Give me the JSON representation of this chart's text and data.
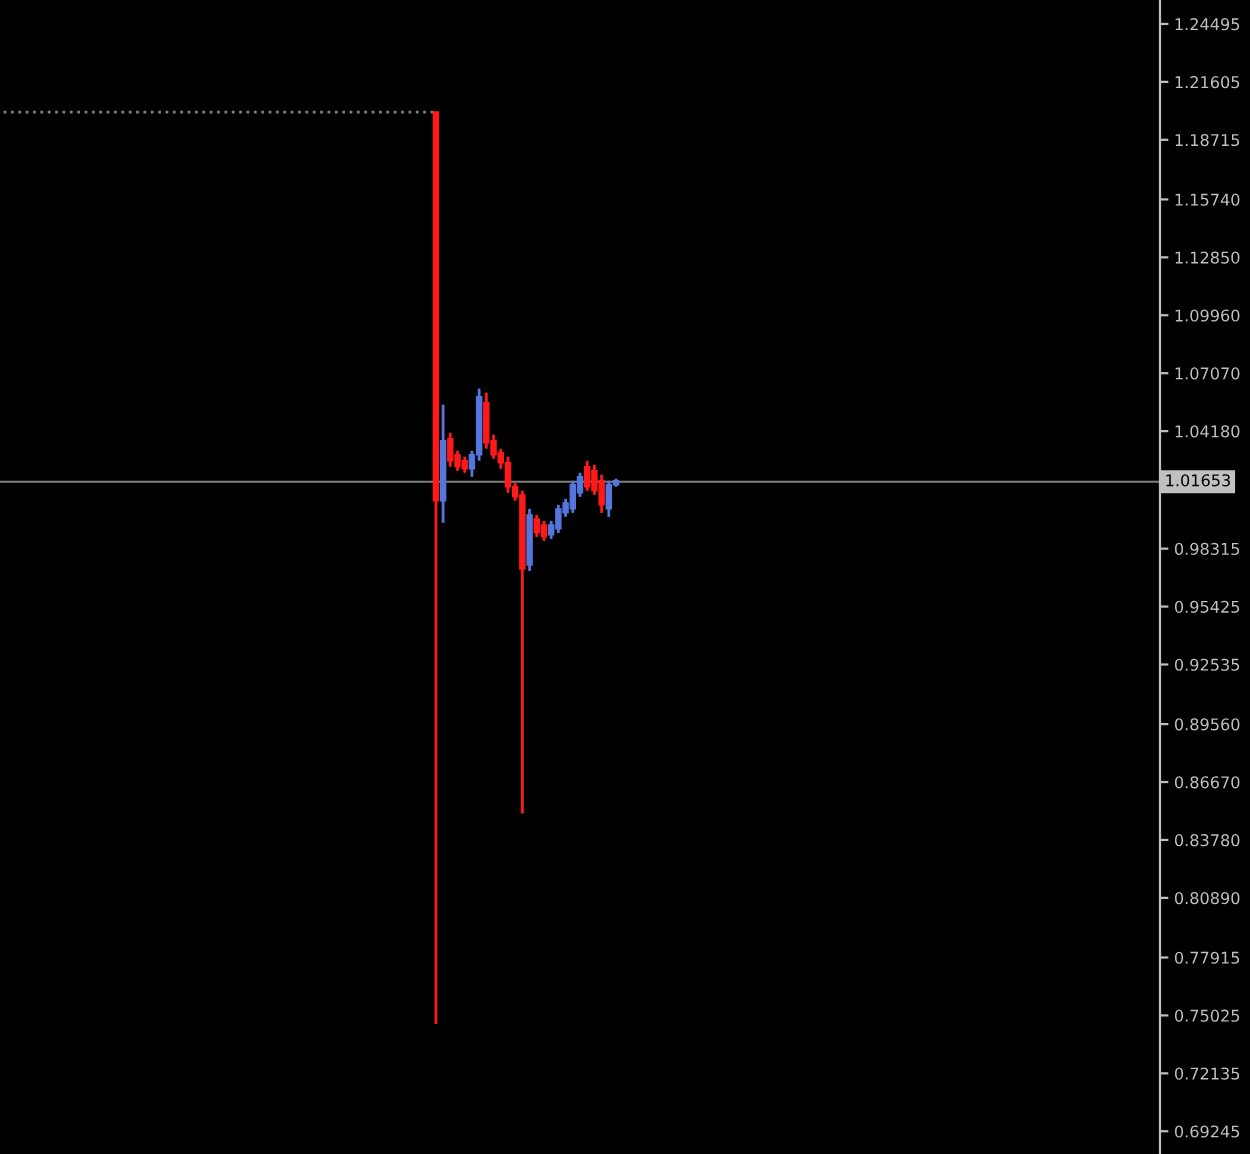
{
  "chart_data": {
    "type": "candlestick",
    "categories": [
      null,
      null,
      null,
      null,
      null,
      null,
      null,
      null,
      null,
      null,
      null,
      null,
      null,
      null,
      null,
      null,
      null,
      null,
      null,
      null,
      null,
      null,
      null,
      null,
      null,
      null,
      null,
      null,
      null,
      null,
      null,
      null,
      null,
      null,
      null,
      null,
      null,
      null,
      null,
      null,
      null,
      null,
      null,
      null,
      null,
      null,
      null,
      null,
      null,
      null,
      null,
      null,
      null,
      null,
      null,
      null,
      null,
      null,
      null,
      null,
      null,
      null,
      null,
      null,
      null,
      null,
      null,
      null,
      null,
      null,
      null,
      null,
      null,
      null,
      null,
      null,
      null,
      null,
      null,
      null,
      null,
      null,
      null,
      null,
      null,
      null,
      null,
      null,
      null,
      null,
      null,
      null,
      null,
      null,
      null,
      null,
      null,
      null,
      null,
      null,
      null,
      null,
      null,
      null,
      null,
      null,
      null,
      null,
      null,
      null,
      null,
      null,
      null,
      null,
      null,
      null,
      null,
      null,
      null,
      null,
      null,
      null,
      null,
      null,
      null,
      null,
      null,
      null,
      null,
      null,
      null,
      null,
      null,
      null,
      null,
      null,
      null,
      null,
      null,
      null,
      null,
      null,
      null,
      null,
      null,
      null,
      null,
      null,
      null,
      null,
      null,
      null,
      null,
      null,
      null,
      null,
      null,
      null,
      null,
      null,
      null
    ],
    "series": [
      {
        "type": "line",
        "color": "#7f7f7f",
        "line_style": "dotted",
        "values": [
          1.201,
          1.201,
          1.201,
          1.201,
          1.201,
          1.201,
          1.201,
          1.201,
          1.201,
          1.201,
          1.201,
          1.201,
          1.201,
          1.201,
          1.201,
          1.201,
          1.201,
          1.201,
          1.201,
          1.201,
          1.201,
          1.201,
          1.201,
          1.201,
          1.201,
          1.201,
          1.201,
          1.201,
          1.201,
          1.201,
          1.201,
          1.201,
          1.201,
          1.201,
          1.201,
          1.201,
          1.201,
          1.201,
          1.201,
          1.201,
          1.201,
          1.201,
          1.201,
          1.201,
          1.201,
          1.201,
          1.201,
          1.201,
          1.201,
          1.201,
          1.201,
          1.201,
          1.201,
          1.201,
          1.201,
          1.201,
          1.201,
          1.201,
          1.201,
          1.201,
          1.201,
          null,
          null,
          null,
          null,
          null,
          null,
          null,
          null,
          null,
          null,
          null,
          null,
          null,
          null,
          null,
          null,
          null,
          null,
          null,
          null,
          null,
          null,
          null,
          null,
          null,
          null,
          null,
          null,
          null,
          null,
          null,
          null,
          null,
          null,
          null,
          null,
          null,
          null,
          null,
          null,
          null,
          null,
          null,
          null,
          null,
          null,
          null,
          null,
          null,
          null,
          null,
          null,
          null,
          null,
          null,
          null,
          null,
          null,
          null,
          null,
          null,
          null,
          null,
          null,
          null,
          null,
          null,
          null,
          null,
          null,
          null,
          null,
          null,
          null,
          null,
          null,
          null,
          null,
          null,
          null,
          null,
          null,
          null,
          null,
          null,
          null,
          null,
          null,
          null,
          null,
          null,
          null,
          null,
          null,
          null,
          null,
          null,
          null,
          null,
          null
        ]
      },
      {
        "type": "candlestick",
        "ohlc": [
          null,
          null,
          null,
          null,
          null,
          null,
          null,
          null,
          null,
          null,
          null,
          null,
          null,
          null,
          null,
          null,
          null,
          null,
          null,
          null,
          null,
          null,
          null,
          null,
          null,
          null,
          null,
          null,
          null,
          null,
          null,
          null,
          null,
          null,
          null,
          null,
          null,
          null,
          null,
          null,
          null,
          null,
          null,
          null,
          null,
          null,
          null,
          null,
          null,
          null,
          null,
          null,
          null,
          null,
          null,
          null,
          null,
          null,
          null,
          null,
          [
            1.201,
            1.201,
            0.746,
            1.007
          ],
          [
            1.007,
            1.055,
            0.996,
            1.037
          ],
          [
            1.038,
            1.041,
            1.024,
            1.027
          ],
          [
            1.03,
            1.032,
            1.022,
            1.024
          ],
          [
            1.027,
            1.029,
            1.021,
            1.023
          ],
          [
            1.023,
            1.032,
            1.019,
            1.03
          ],
          [
            1.03,
            1.063,
            1.027,
            1.059
          ],
          [
            1.056,
            1.061,
            1.033,
            1.036
          ],
          [
            1.037,
            1.04,
            1.028,
            1.03
          ],
          [
            1.031,
            1.033,
            1.023,
            1.026
          ],
          [
            1.026,
            1.029,
            1.011,
            1.014
          ],
          [
            1.014,
            1.016,
            1.007,
            1.009
          ],
          [
            1.01,
            1.012,
            0.851,
            0.973
          ],
          [
            0.975,
            1.003,
            0.972,
            1.0
          ],
          [
            0.998,
            1.0,
            0.989,
            0.991
          ],
          [
            0.995,
            0.997,
            0.987,
            0.989
          ],
          [
            0.99,
            0.997,
            0.988,
            0.995
          ],
          [
            0.993,
            1.005,
            0.991,
            1.003
          ],
          [
            1.001,
            1.008,
            0.999,
            1.006
          ],
          [
            1.003,
            1.017,
            1.001,
            1.015
          ],
          [
            1.011,
            1.021,
            1.009,
            1.019
          ],
          [
            1.024,
            1.027,
            1.012,
            1.014
          ],
          [
            1.022,
            1.025,
            1.01,
            1.012
          ],
          [
            1.017,
            1.02,
            1.001,
            1.005
          ],
          [
            1.003,
            1.017,
            0.999,
            1.015
          ],
          [
            1.015,
            1.018,
            1.014,
            1.017
          ],
          null,
          null,
          null,
          null,
          null,
          null,
          null,
          null,
          null,
          null,
          null,
          null,
          null,
          null,
          null,
          null,
          null,
          null,
          null,
          null,
          null,
          null,
          null,
          null,
          null,
          null,
          null,
          null,
          null,
          null,
          null,
          null,
          null,
          null,
          null,
          null,
          null,
          null,
          null,
          null,
          null,
          null,
          null,
          null,
          null,
          null,
          null,
          null,
          null,
          null,
          null,
          null,
          null,
          null,
          null,
          null,
          null,
          null,
          null,
          null,
          null,
          null,
          null,
          null,
          null,
          null,
          null,
          null,
          null,
          null,
          null,
          null,
          null,
          null,
          null
        ],
        "colors": [
          null,
          null,
          null,
          null,
          null,
          null,
          null,
          null,
          null,
          null,
          null,
          null,
          null,
          null,
          null,
          null,
          null,
          null,
          null,
          null,
          null,
          null,
          null,
          null,
          null,
          null,
          null,
          null,
          null,
          null,
          null,
          null,
          null,
          null,
          null,
          null,
          null,
          null,
          null,
          null,
          null,
          null,
          null,
          null,
          null,
          null,
          null,
          null,
          null,
          null,
          null,
          null,
          null,
          null,
          null,
          null,
          null,
          null,
          null,
          null,
          "#ff1a1a",
          "#5577dd",
          "#ff1a1a",
          "#ff1a1a",
          "#ff1a1a",
          "#5577dd",
          "#5577dd",
          "#ff1a1a",
          "#ff1a1a",
          "#ff1a1a",
          "#ff1a1a",
          "#ff1a1a",
          "#ff1a1a",
          "#5577dd",
          "#ff1a1a",
          "#ff1a1a",
          "#5577dd",
          "#5577dd",
          "#5577dd",
          "#5577dd",
          "#5577dd",
          "#ff1a1a",
          "#ff1a1a",
          "#ff1a1a",
          "#5577dd",
          "#5577dd",
          null,
          null,
          null,
          null,
          null,
          null,
          null,
          null,
          null,
          null,
          null,
          null,
          null,
          null,
          null,
          null,
          null,
          null,
          null,
          null,
          null,
          null,
          null,
          null,
          null,
          null,
          null,
          null,
          null,
          null,
          null,
          null,
          null,
          null,
          null,
          null,
          null,
          null,
          null,
          null,
          null,
          null,
          null,
          null,
          null,
          null,
          null,
          null,
          null,
          null,
          null,
          null,
          null,
          null,
          null,
          null,
          null,
          null,
          null,
          null,
          null,
          null,
          null,
          null,
          null,
          null,
          null,
          null,
          null,
          null,
          null,
          null,
          null,
          null,
          null
        ]
      }
    ],
    "ylim": [
      0.6811,
      1.2569
    ],
    "yticks": [
      1.24495,
      1.21605,
      1.18715,
      {
        "value": 1.1574,
        "label": "1.15740"
      },
      {
        "value": 1.1285,
        "label": "1.12850"
      },
      {
        "value": 1.0996,
        "label": "1.09960"
      },
      {
        "value": 1.0707,
        "label": "1.07070"
      },
      {
        "value": 1.0418,
        "label": "1.04180"
      },
      0.98315,
      0.95425,
      0.92535,
      {
        "value": 0.8956,
        "label": "0.89560"
      },
      {
        "value": 0.8667,
        "label": "0.86670"
      },
      {
        "value": 0.8378,
        "label": "0.83780"
      },
      {
        "value": 0.8089,
        "label": "0.80890"
      },
      0.77915,
      0.75025,
      0.72135,
      0.69245
    ],
    "tick_labels": "y",
    "grid": false,
    "ref_lines": [
      {
        "axis": "y",
        "value": 1.01653,
        "label": "1.01653",
        "color": "#7f7f7f"
      }
    ]
  }
}
